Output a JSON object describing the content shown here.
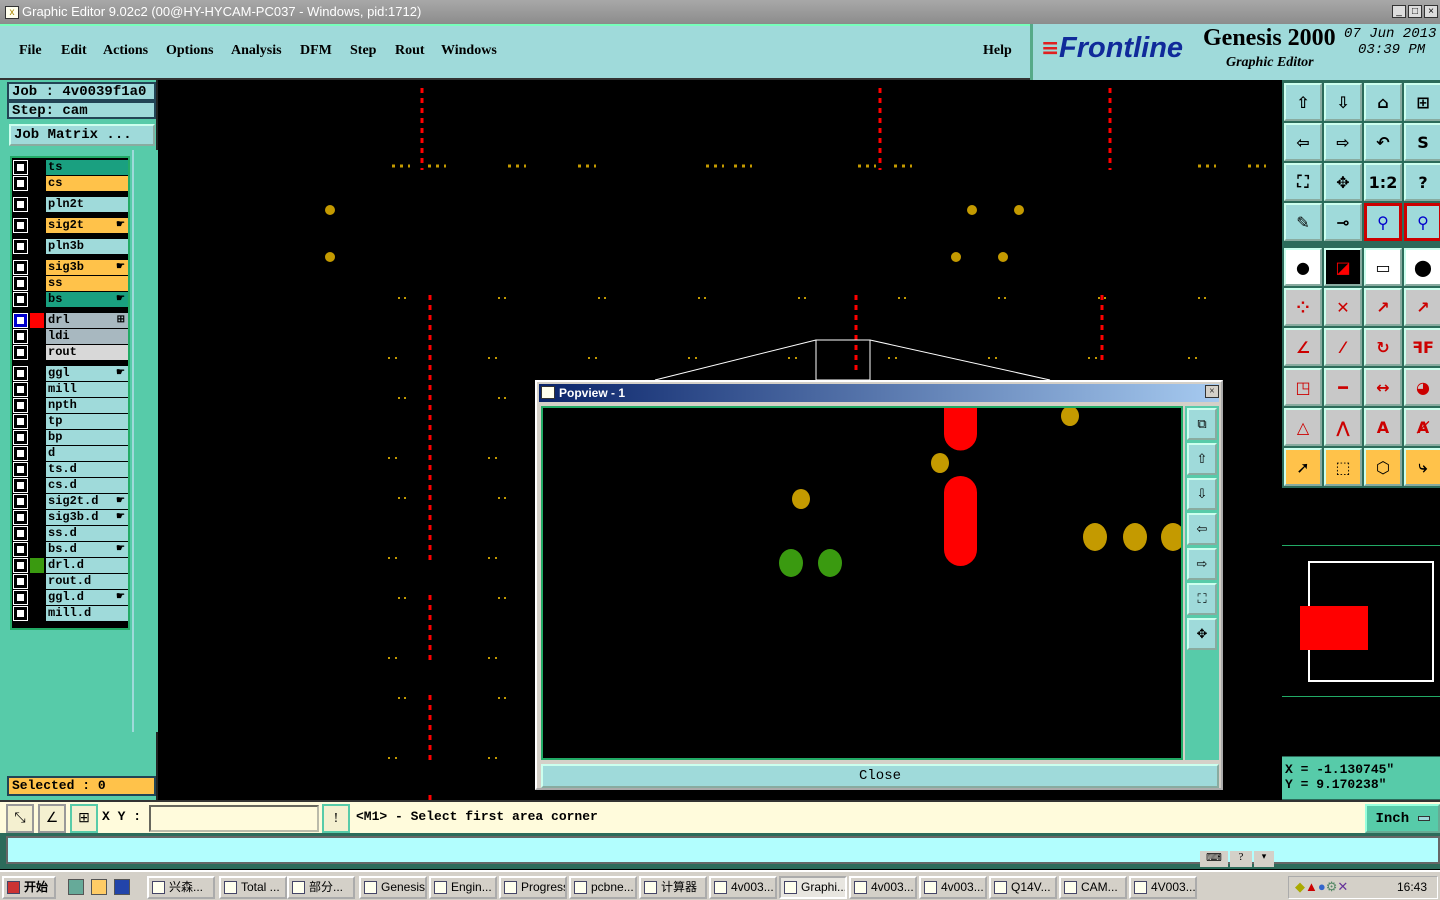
{
  "window": {
    "title": "Graphic Editor 9.02c2 (00@HY-HYCAM-PC037 - Windows, pid:1712)",
    "controls": [
      "_",
      "□",
      "×"
    ]
  },
  "menu": {
    "items": [
      "File",
      "Edit",
      "Actions",
      "Options",
      "Analysis",
      "DFM",
      "Step",
      "Rout",
      "Windows"
    ],
    "help": "Help"
  },
  "logo": {
    "brand": "Frontline",
    "product": "Genesis 2000",
    "subtitle": "Graphic Editor",
    "date": "07 Jun 2013",
    "time": "03:39 PM"
  },
  "job": {
    "job": "Job  : 4v0039f1a0",
    "step": "Step: cam",
    "matrix_button": "Job Matrix ..."
  },
  "layers": [
    {
      "name": "ts",
      "color": "#1aa080",
      "group": 0
    },
    {
      "name": "cs",
      "color": "#ffc24a",
      "group": 0
    },
    {
      "name": "pln2t",
      "color": "#9fdada",
      "group": 1
    },
    {
      "name": "sig2t",
      "color": "#ffc24a",
      "group": 2,
      "mark": "☛"
    },
    {
      "name": "pln3b",
      "color": "#9fdada",
      "group": 3
    },
    {
      "name": "sig3b",
      "color": "#ffc24a",
      "group": 4,
      "mark": "☛"
    },
    {
      "name": "ss",
      "color": "#ffc24a",
      "group": 4
    },
    {
      "name": "bs",
      "color": "#1aa080",
      "group": 4,
      "mark": "☛"
    },
    {
      "name": "drl",
      "color": "#a8b8c0",
      "group": 5,
      "mark": "⊞",
      "swatch": "#ff0000",
      "active": true
    },
    {
      "name": "ldi",
      "color": "#a8b8c0",
      "group": 5
    },
    {
      "name": "rout",
      "color": "#d8d8d8",
      "group": 5
    },
    {
      "name": "ggl",
      "color": "#9fdada",
      "group": 6,
      "mark": "☛"
    },
    {
      "name": "mill",
      "color": "#9fdada",
      "group": 6
    },
    {
      "name": "npth",
      "color": "#9fdada",
      "group": 6
    },
    {
      "name": "tp",
      "color": "#9fdada",
      "group": 6
    },
    {
      "name": "bp",
      "color": "#9fdada",
      "group": 6
    },
    {
      "name": "d",
      "color": "#9fdada",
      "group": 6
    },
    {
      "name": "ts.d",
      "color": "#9fdada",
      "group": 6
    },
    {
      "name": "cs.d",
      "color": "#9fdada",
      "group": 6
    },
    {
      "name": "sig2t.d",
      "color": "#9fdada",
      "group": 6,
      "mark": "☛"
    },
    {
      "name": "sig3b.d",
      "color": "#9fdada",
      "group": 6,
      "mark": "☛"
    },
    {
      "name": "ss.d",
      "color": "#9fdada",
      "group": 6
    },
    {
      "name": "bs.d",
      "color": "#9fdada",
      "group": 6,
      "mark": "☛"
    },
    {
      "name": "drl.d",
      "color": "#9fdada",
      "group": 6,
      "swatch": "#3a9a10"
    },
    {
      "name": "rout.d",
      "color": "#9fdada",
      "group": 6
    },
    {
      "name": "ggl.d",
      "color": "#9fdada",
      "group": 6,
      "mark": "☛"
    },
    {
      "name": "mill.d",
      "color": "#9fdada",
      "group": 6
    }
  ],
  "selected": "Selected : 0",
  "toolbar": [
    {
      "icon": "zoom-in-up",
      "glyph": "⇧",
      "style": ""
    },
    {
      "icon": "zoom-out-down",
      "glyph": "⇩",
      "style": ""
    },
    {
      "icon": "home",
      "glyph": "⌂",
      "style": ""
    },
    {
      "icon": "window-xy",
      "glyph": "⊞",
      "style": ""
    },
    {
      "icon": "pan-left",
      "glyph": "⇦",
      "style": ""
    },
    {
      "icon": "pan-right",
      "glyph": "⇨",
      "style": ""
    },
    {
      "icon": "undo-view",
      "glyph": "↶",
      "style": ""
    },
    {
      "icon": "snap",
      "glyph": "S",
      "style": ""
    },
    {
      "icon": "zoom-fit",
      "glyph": "⛶",
      "style": ""
    },
    {
      "icon": "zoom-center",
      "glyph": "✥",
      "style": ""
    },
    {
      "icon": "scale-1-2",
      "glyph": "1:2",
      "style": ""
    },
    {
      "icon": "help",
      "glyph": "?",
      "style": ""
    },
    {
      "icon": "tools-palette",
      "glyph": "✎",
      "style": ""
    },
    {
      "icon": "pad-snap",
      "glyph": "⊸",
      "style": ""
    },
    {
      "icon": "net-highlight",
      "glyph": "⚲",
      "style": "r"
    },
    {
      "icon": "net-highlight-2",
      "glyph": "⚲",
      "style": "r"
    },
    {
      "icon": "add-pad",
      "glyph": "●",
      "style": "w"
    },
    {
      "icon": "measure-area",
      "glyph": "◪",
      "style": "k"
    },
    {
      "icon": "ruler",
      "glyph": "▭",
      "style": "w"
    },
    {
      "icon": "pad-outline",
      "glyph": "⬤",
      "style": "w"
    },
    {
      "icon": "connect-pads",
      "glyph": "⁘",
      "style": "g"
    },
    {
      "icon": "delete-cross",
      "glyph": "✕",
      "style": "g"
    },
    {
      "icon": "move-pad",
      "glyph": "↗",
      "style": "g"
    },
    {
      "icon": "copy-pad",
      "glyph": "↗",
      "style": "g"
    },
    {
      "icon": "move-line",
      "glyph": "∠",
      "style": "g"
    },
    {
      "icon": "line-edit",
      "glyph": "⁄",
      "style": "g"
    },
    {
      "icon": "rotate",
      "glyph": "↻",
      "style": "g"
    },
    {
      "icon": "mirror",
      "glyph": "ꟻF",
      "style": "g"
    },
    {
      "icon": "resize-pad",
      "glyph": "◳",
      "style": "g"
    },
    {
      "icon": "split-line",
      "glyph": "━",
      "style": "g"
    },
    {
      "icon": "space",
      "glyph": "↔",
      "style": "g"
    },
    {
      "icon": "merge-shapes",
      "glyph": "◕",
      "style": "g"
    },
    {
      "icon": "polygon-a",
      "glyph": "△",
      "style": "g"
    },
    {
      "icon": "polygon-b",
      "glyph": "⋀",
      "style": "g"
    },
    {
      "icon": "polygon-c",
      "glyph": "A",
      "style": "g"
    },
    {
      "icon": "polygon-d",
      "glyph": "Ⱥ",
      "style": "g"
    },
    {
      "icon": "select-pointer",
      "glyph": "➚",
      "style": "o"
    },
    {
      "icon": "select-box",
      "glyph": "⬚",
      "style": "o"
    },
    {
      "icon": "select-polygon",
      "glyph": "⬡",
      "style": "o"
    },
    {
      "icon": "select-net",
      "glyph": "⤷",
      "style": "o"
    }
  ],
  "coords": {
    "x": "X = -1.130745\"",
    "y": "Y = 9.170238\""
  },
  "bottom": {
    "xy_label": "X Y :",
    "xy_value": "",
    "message": "<M1> - Select first area corner",
    "units": "Inch"
  },
  "popview": {
    "title": "Popview - 1",
    "close": "Close",
    "tools": [
      "zoom-window",
      "zoom-in",
      "zoom-out",
      "pan-left",
      "pan-right",
      "zoom-fit",
      "pan-center"
    ]
  },
  "taskbar": {
    "start": "开始",
    "tasks": [
      "兴森...",
      "Total ...",
      "部分...",
      "Genesis",
      "Engin...",
      "Progress",
      "pcbne...",
      "计算器",
      "4v003...",
      "Graphi...",
      "4v003...",
      "4v003...",
      "Q14V...",
      "CAM...",
      "4V003..."
    ],
    "active": "Graphi...",
    "clock": "16:43"
  },
  "colors": {
    "panel": "#57cba9",
    "menu": "#9fdada",
    "red": "#ff0000",
    "pad": "#c49a00",
    "green": "#3a9a10"
  }
}
